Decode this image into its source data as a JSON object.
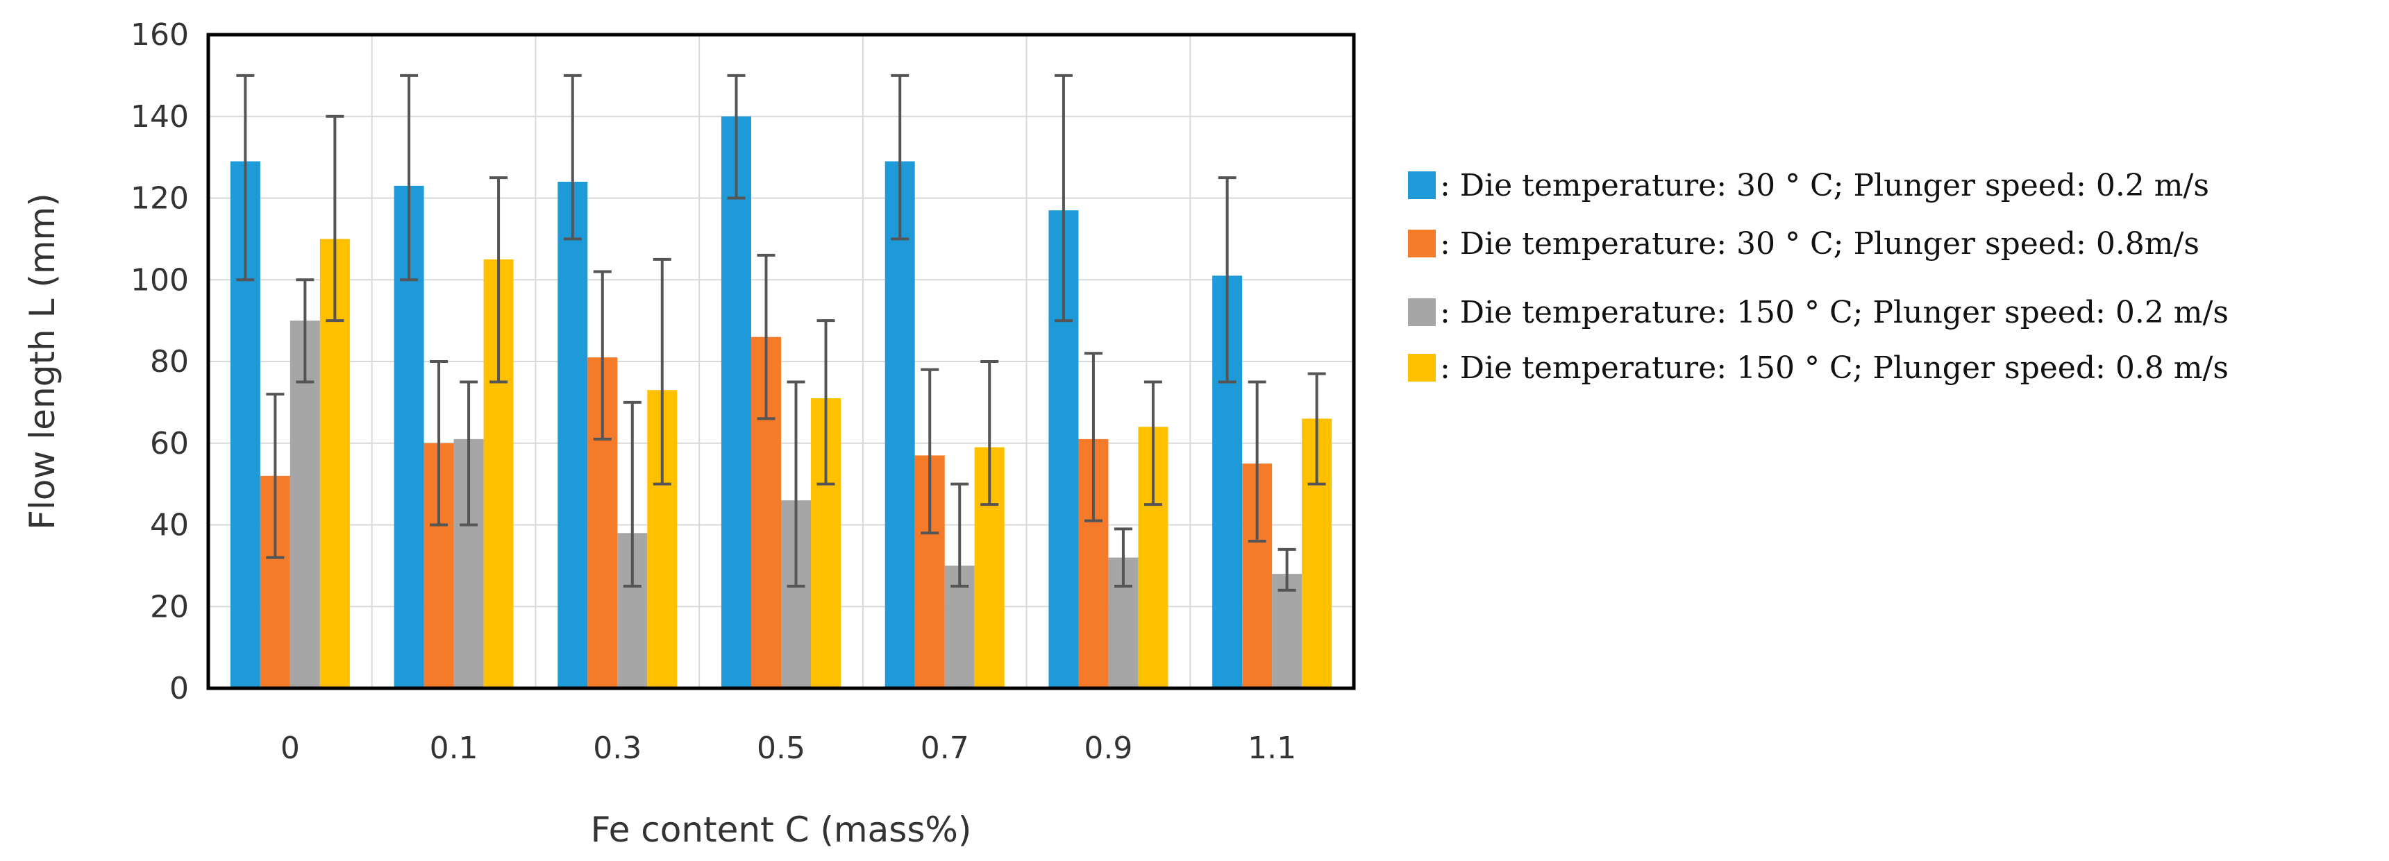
{
  "chart_data": {
    "type": "bar",
    "title": "",
    "xlabel": "Fe content C (mass%)",
    "ylabel": "Flow length L (mm)",
    "ylim": [
      0,
      160
    ],
    "yticks": [
      0,
      20,
      40,
      60,
      80,
      100,
      120,
      140,
      160
    ],
    "grid": true,
    "legend_position": "right",
    "categories": [
      "0",
      "0.1",
      "0.3",
      "0.5",
      "0.7",
      "0.9",
      "1.1"
    ],
    "series": [
      {
        "name": ": Die temperature: 30 ° C; Plunger speed: 0.2 m/s",
        "color": "#1f9ad8",
        "values": [
          129,
          123,
          124,
          140,
          129,
          117,
          101
        ],
        "err_low": [
          100,
          100,
          110,
          120,
          110,
          90,
          75
        ],
        "err_high": [
          150,
          150,
          150,
          150,
          150,
          150,
          125
        ]
      },
      {
        "name": ": Die temperature: 30 ° C; Plunger speed: 0.8m/s",
        "color": "#f47b2a",
        "values": [
          52,
          60,
          81,
          86,
          57,
          61,
          55
        ],
        "err_low": [
          32,
          40,
          61,
          66,
          38,
          41,
          36
        ],
        "err_high": [
          72,
          80,
          102,
          106,
          78,
          82,
          75
        ]
      },
      {
        "name": ": Die temperature: 150 ° C; Plunger speed: 0.2 m/s",
        "color": "#a6a6a6",
        "values": [
          90,
          61,
          38,
          46,
          30,
          32,
          28
        ],
        "err_low": [
          75,
          40,
          25,
          25,
          25,
          25,
          24
        ],
        "err_high": [
          100,
          75,
          70,
          75,
          50,
          39,
          34
        ]
      },
      {
        "name": ": Die temperature: 150 ° C; Plunger speed: 0.8 m/s",
        "color": "#ffc000",
        "values": [
          110,
          105,
          73,
          71,
          59,
          64,
          66
        ],
        "err_low": [
          90,
          75,
          50,
          50,
          45,
          45,
          50
        ],
        "err_high": [
          140,
          125,
          105,
          90,
          80,
          75,
          77
        ]
      }
    ]
  }
}
